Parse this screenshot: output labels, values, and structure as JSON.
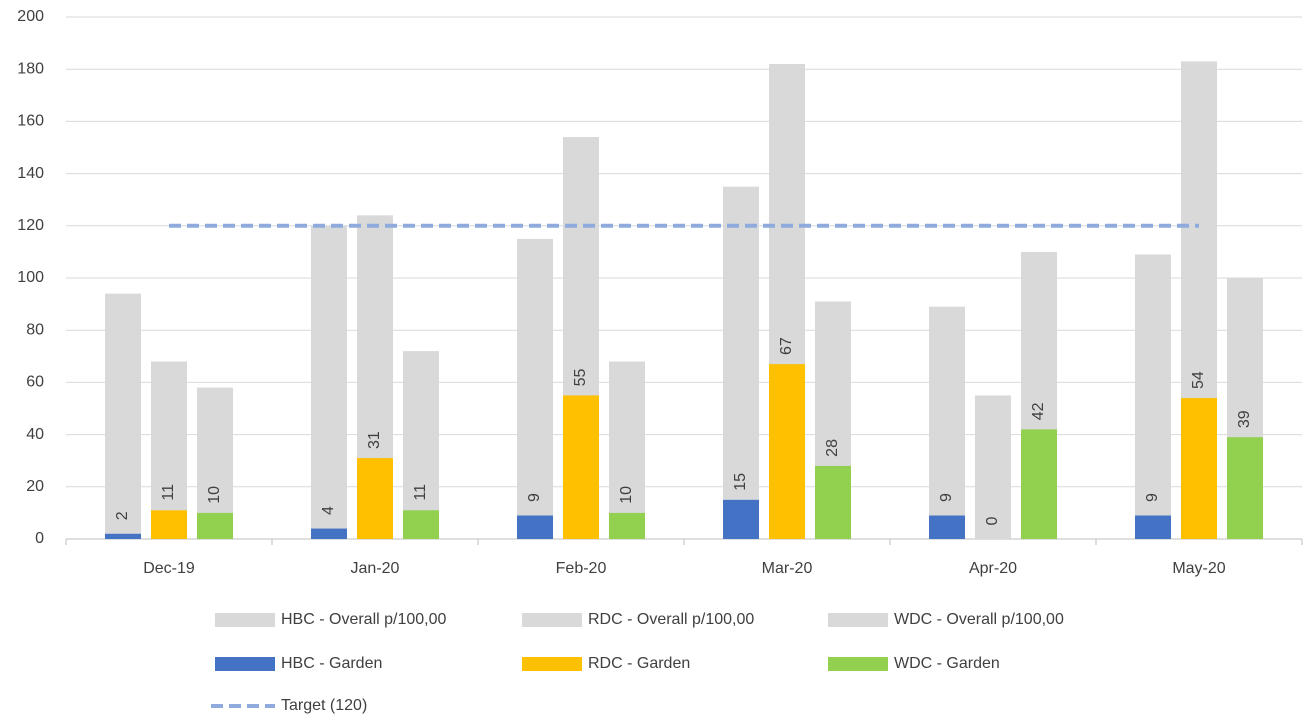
{
  "chart_data": {
    "type": "bar",
    "categories": [
      "Dec-19",
      "Jan-20",
      "Feb-20",
      "Mar-20",
      "Apr-20",
      "May-20"
    ],
    "ylim": [
      0,
      200
    ],
    "yticks": [
      0,
      20,
      40,
      60,
      80,
      100,
      120,
      140,
      160,
      180,
      200
    ],
    "grid": true,
    "series": [
      {
        "name": "HBC - Overall p/100,00",
        "type": "bar",
        "color": "#d9d9d9",
        "values": [
          94,
          120,
          115,
          135,
          89,
          109
        ]
      },
      {
        "name": "RDC - Overall p/100,00",
        "type": "bar",
        "color": "#d9d9d9",
        "values": [
          68,
          124,
          154,
          182,
          55,
          183
        ]
      },
      {
        "name": "WDC - Overall p/100,00",
        "type": "bar",
        "color": "#d9d9d9",
        "values": [
          58,
          72,
          68,
          91,
          110,
          100
        ]
      },
      {
        "name": "HBC - Garden",
        "type": "bar",
        "color": "#4472c4",
        "data_labels": true,
        "values": [
          2,
          4,
          9,
          15,
          9,
          9
        ]
      },
      {
        "name": "RDC - Garden",
        "type": "bar",
        "color": "#ffc000",
        "data_labels": true,
        "values": [
          11,
          31,
          55,
          67,
          0,
          54
        ]
      },
      {
        "name": "WDC - Garden",
        "type": "bar",
        "color": "#92d050",
        "data_labels": true,
        "values": [
          10,
          11,
          10,
          28,
          42,
          39
        ]
      },
      {
        "name": "Target (120)",
        "type": "line",
        "dashed": true,
        "color": "#8faadc",
        "values": [
          120,
          120,
          120,
          120,
          120,
          120
        ]
      }
    ]
  }
}
